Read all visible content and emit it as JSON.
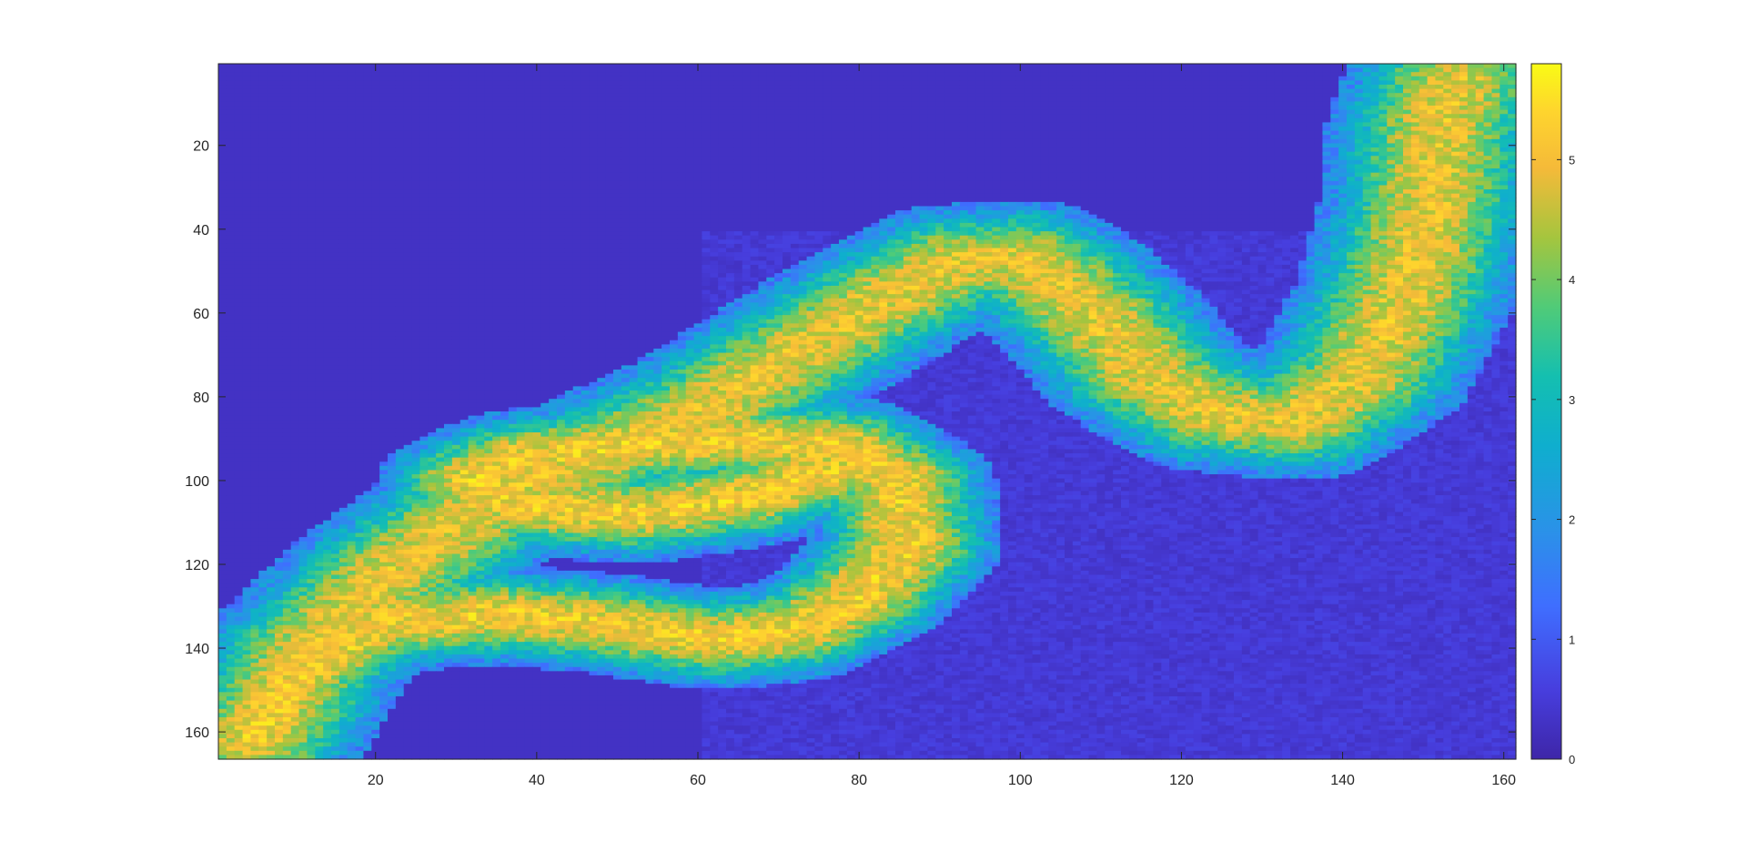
{
  "chart_data": {
    "type": "heatmap",
    "title": "",
    "xlabel": "",
    "ylabel": "",
    "xlim": [
      0.5,
      161.5
    ],
    "ylim": [
      0.5,
      166.5
    ],
    "y_reversed": true,
    "x_ticks": [
      20,
      40,
      60,
      80,
      100,
      120,
      140,
      160
    ],
    "y_ticks": [
      20,
      40,
      60,
      80,
      100,
      120,
      140,
      160
    ],
    "colorbar": {
      "ticks": [
        0,
        1,
        2,
        3,
        4,
        5
      ],
      "clim": [
        0,
        5.8
      ],
      "colormap": "parula",
      "location": "right"
    },
    "grid": false,
    "background_value": 0.3,
    "structure_description": "folded cortical-like ribbon with bright central layers on dark blue background",
    "bands": [
      {
        "name": "upper-fold",
        "points": [
          [
            5,
            162
          ],
          [
            12,
            140
          ],
          [
            22,
            122
          ],
          [
            35,
            104
          ],
          [
            50,
            92
          ],
          [
            62,
            82
          ],
          [
            72,
            70
          ],
          [
            82,
            58
          ],
          [
            92,
            48
          ],
          [
            100,
            47
          ],
          [
            104,
            52
          ],
          [
            110,
            62
          ],
          [
            116,
            75
          ],
          [
            124,
            84
          ],
          [
            134,
            86
          ],
          [
            142,
            76
          ],
          [
            148,
            55
          ],
          [
            151,
            35
          ],
          [
            152,
            15
          ],
          [
            154,
            5
          ]
        ],
        "half_width": 14,
        "core_value": 4.9
      },
      {
        "name": "lower-loop",
        "points": [
          [
            5,
            162
          ],
          [
            10,
            146
          ],
          [
            20,
            134
          ],
          [
            35,
            132
          ],
          [
            48,
            134
          ],
          [
            62,
            138
          ],
          [
            72,
            136
          ],
          [
            80,
            128
          ],
          [
            86,
            116
          ],
          [
            85,
            100
          ],
          [
            78,
            92
          ],
          [
            64,
            90
          ],
          [
            50,
            92
          ],
          [
            38,
            95
          ],
          [
            32,
            100
          ],
          [
            38,
            106
          ],
          [
            52,
            108
          ],
          [
            66,
            104
          ],
          [
            76,
            98
          ]
        ],
        "half_width": 12,
        "core_value": 5.1
      }
    ]
  }
}
